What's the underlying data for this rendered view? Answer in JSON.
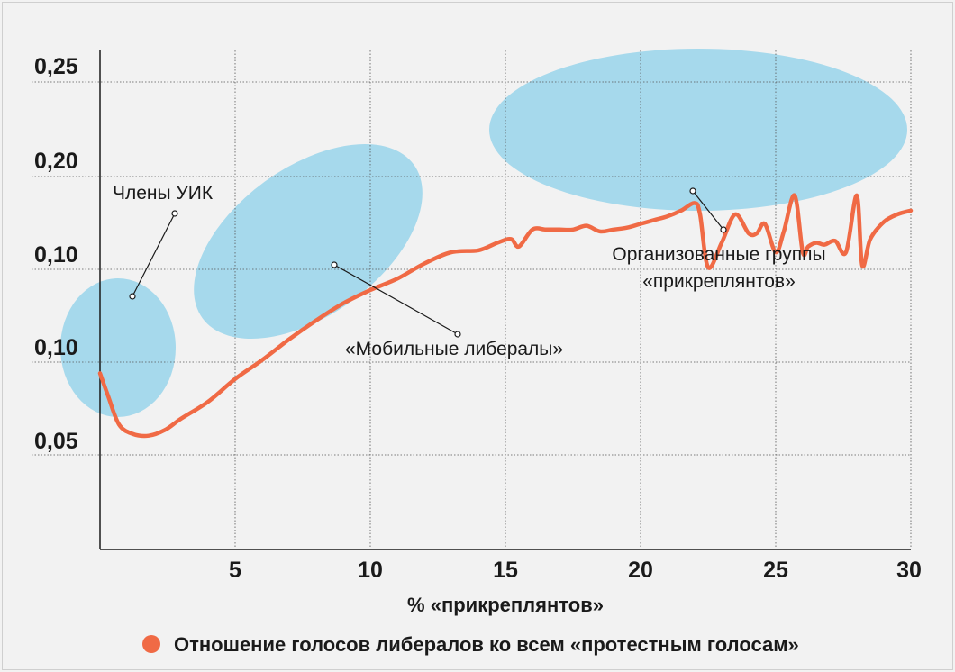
{
  "chart_data": {
    "type": "line",
    "xlabel": "% «прикреплянтов»",
    "ylabel": "",
    "x_ticks": [
      "5",
      "10",
      "15",
      "20",
      "25",
      "30"
    ],
    "y_ticks": [
      "0,25",
      "0,20",
      "0,10",
      "0,10",
      "0,05"
    ],
    "xlim": [
      0,
      30
    ],
    "grid": true,
    "legend_position": "bottom",
    "series": [
      {
        "name": "Отношение голосов либералов ко всем «протестным голосам»",
        "color": "#f06a45",
        "x": [
          0.0,
          0.3,
          0.7,
          1.2,
          1.8,
          2.4,
          3.0,
          4.0,
          5.0,
          6.0,
          7.0,
          8.0,
          9.0,
          10.0,
          11.0,
          12.0,
          13.0,
          14.0,
          14.7,
          15.2,
          15.5,
          16.0,
          16.5,
          17.0,
          17.5,
          18.0,
          18.5,
          19.0,
          19.5,
          20.0,
          20.5,
          21.0,
          21.5,
          22.0,
          22.2,
          22.5,
          23.0,
          23.5,
          24.0,
          24.3,
          24.6,
          25.0,
          25.3,
          25.7,
          26.0,
          26.2,
          26.5,
          26.8,
          27.2,
          27.6,
          28.0,
          28.2,
          28.5,
          29.0,
          29.5,
          30.0
        ],
        "y": [
          0.096,
          0.084,
          0.069,
          0.064,
          0.063,
          0.066,
          0.072,
          0.081,
          0.093,
          0.103,
          0.114,
          0.124,
          0.133,
          0.14,
          0.146,
          0.154,
          0.16,
          0.161,
          0.165,
          0.167,
          0.163,
          0.172,
          0.172,
          0.172,
          0.172,
          0.174,
          0.171,
          0.172,
          0.173,
          0.175,
          0.177,
          0.179,
          0.182,
          0.186,
          0.18,
          0.152,
          0.165,
          0.18,
          0.17,
          0.17,
          0.175,
          0.16,
          0.171,
          0.19,
          0.16,
          0.163,
          0.165,
          0.164,
          0.166,
          0.16,
          0.19,
          0.153,
          0.167,
          0.176,
          0.18,
          0.182
        ]
      }
    ],
    "annotations": [
      {
        "label": "Члены УИК"
      },
      {
        "label": "«Мобильные либералы»"
      },
      {
        "label_line1": "Организованные группы",
        "label_line2": "«прикреплянтов»"
      }
    ],
    "highlight_color": "#a6d9ec",
    "grid_color": "#555555"
  }
}
